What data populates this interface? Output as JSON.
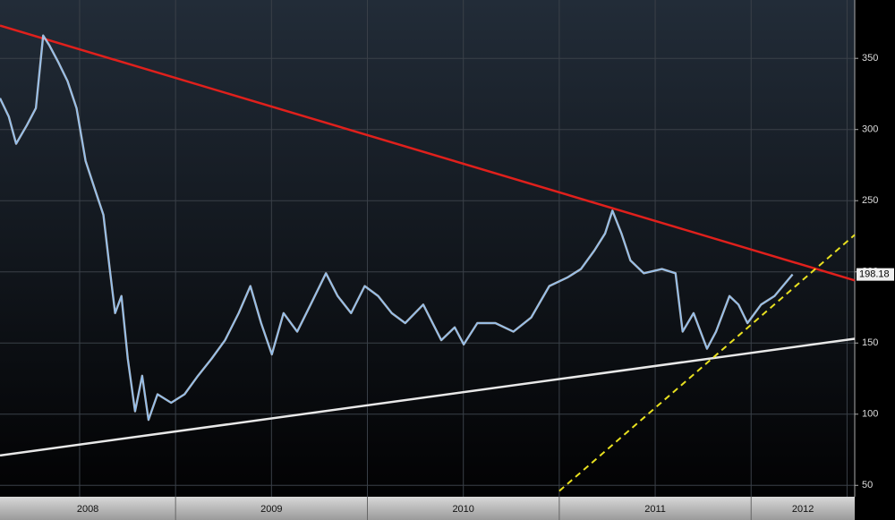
{
  "chart_data": {
    "type": "line",
    "x": [
      2008.085,
      2008.131,
      2008.169,
      2008.225,
      2008.272,
      2008.31,
      2008.343,
      2008.39,
      2008.437,
      2008.484,
      2008.531,
      2008.577,
      2008.624,
      2008.657,
      2008.685,
      2008.718,
      2008.751,
      2008.789,
      2008.826,
      2008.859,
      2008.906,
      2008.977,
      2009.047,
      2009.117,
      2009.188,
      2009.258,
      2009.329,
      2009.39,
      2009.446,
      2009.502,
      2009.563,
      2009.634,
      2009.704,
      2009.784,
      2009.845,
      2009.915,
      2009.986,
      2010.056,
      2010.127,
      2010.197,
      2010.291,
      2010.385,
      2010.455,
      2010.502,
      2010.573,
      2010.667,
      2010.761,
      2010.854,
      2010.948,
      2011.042,
      2011.113,
      2011.183,
      2011.239,
      2011.277,
      2011.324,
      2011.371,
      2011.441,
      2011.535,
      2011.606,
      2011.643,
      2011.7,
      2011.77,
      2011.817,
      2011.887,
      2011.934,
      2011.981,
      2012.052,
      2012.122,
      2012.216
    ],
    "series": [
      {
        "color": "#8fbef0",
        "values": [
          322,
          309,
          290,
          303,
          315,
          366,
          359,
          347,
          334,
          315,
          278,
          259,
          240,
          202,
          171,
          183,
          139,
          102,
          127,
          96,
          114,
          108,
          114,
          127,
          139,
          152,
          171,
          190,
          164,
          142,
          171,
          158,
          177,
          199,
          183,
          171,
          190,
          183,
          171,
          164,
          177,
          152,
          161,
          149,
          164,
          164,
          158,
          168,
          190,
          196,
          202,
          215,
          227,
          243,
          227,
          208,
          199,
          202,
          199,
          158,
          171,
          146,
          158,
          183,
          177,
          164,
          177,
          183,
          198.18
        ]
      }
    ],
    "trendlines": [
      {
        "color": "#e0201c",
        "x": [
          2008.085,
          2012.54
        ],
        "values": [
          373,
          194
        ]
      },
      {
        "color": "#e8e8e8",
        "x": [
          2008.085,
          2012.54
        ],
        "values": [
          71,
          153
        ]
      },
      {
        "color": "#e8e020",
        "x": [
          2011.0,
          2012.54
        ],
        "values": [
          46,
          226
        ],
        "dashed": true
      }
    ],
    "xlim": [
      2008.085,
      2012.54
    ],
    "xticks": [
      2008,
      2009,
      2010,
      2011,
      2012
    ],
    "xminorticks": [
      2008.5,
      2009.5,
      2010.5,
      2011.5,
      2012.5
    ],
    "ylim": [
      42,
      391
    ],
    "yticks": [
      50,
      100,
      150,
      200,
      250,
      300,
      350
    ],
    "grid": true
  }
}
